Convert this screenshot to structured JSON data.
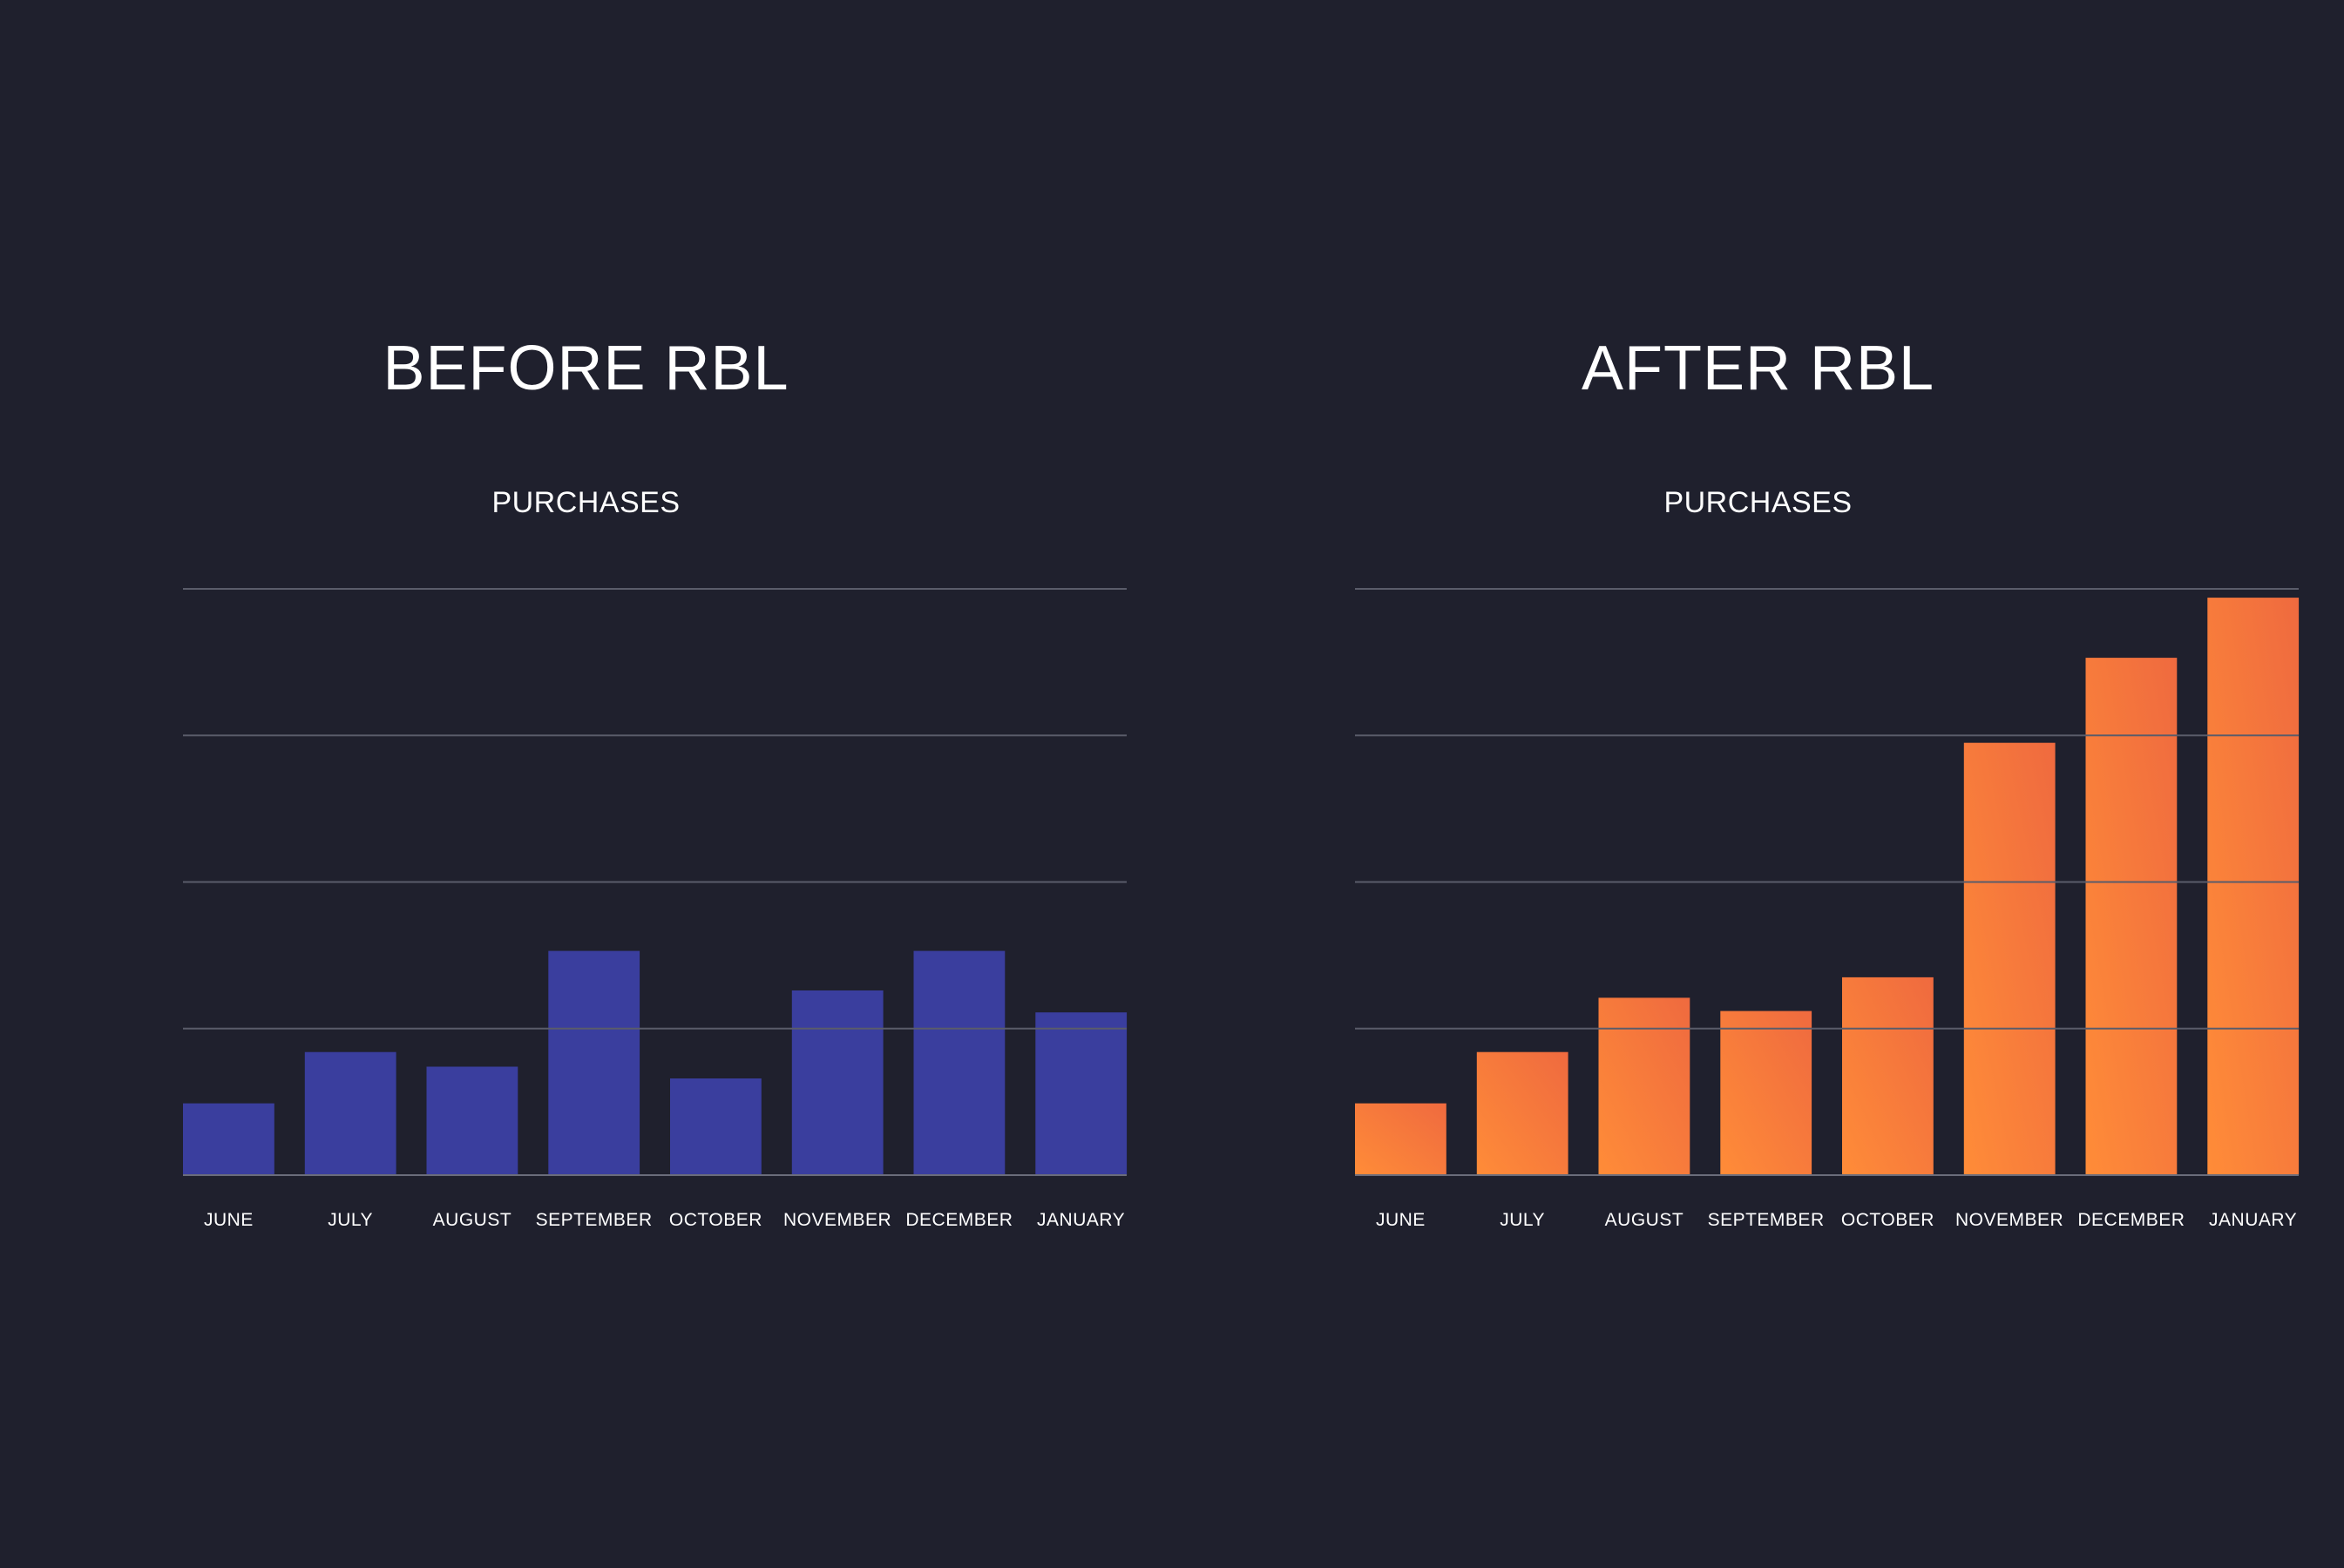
{
  "chart_data": [
    {
      "type": "bar",
      "title": "BEFORE RBL",
      "subtitle": "PURCHASES",
      "categories": [
        "JUNE",
        "JULY",
        "AUGUST",
        "SEPTEMBER",
        "OCTOBER",
        "NOVEMBER",
        "DECEMBER",
        "JANUARY"
      ],
      "values": [
        0.49,
        0.84,
        0.74,
        1.53,
        0.66,
        1.26,
        1.53,
        1.11
      ],
      "xlabel": "",
      "ylabel": "",
      "ylim": [
        0,
        4
      ],
      "grid": true,
      "bar_color": "#3a3e9e"
    },
    {
      "type": "bar",
      "title": "AFTER RBL",
      "subtitle": "PURCHASES",
      "categories": [
        "JUNE",
        "JULY",
        "AUGUST",
        "SEPTEMBER",
        "OCTOBER",
        "NOVEMBER",
        "DECEMBER",
        "JANUARY"
      ],
      "values": [
        0.49,
        0.84,
        1.21,
        1.12,
        1.35,
        2.95,
        3.53,
        3.94
      ],
      "xlabel": "",
      "ylabel": "",
      "ylim": [
        0,
        4
      ],
      "grid": true,
      "bar_color_start": "#ff8c38",
      "bar_color_end": "#ef6a3f"
    }
  ]
}
